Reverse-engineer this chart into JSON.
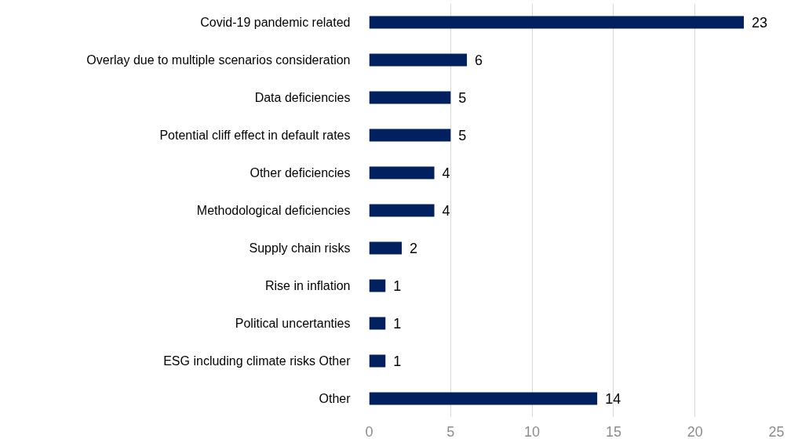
{
  "chart_data": {
    "type": "bar",
    "orientation": "horizontal",
    "categories": [
      "Covid-19 pandemic related",
      "Overlay due to multiple scenarios consideration",
      "Data deficiencies",
      "Potential cliff effect in default rates",
      "Other deficiencies",
      "Methodological deficiencies",
      "Supply chain risks",
      "Rise in inflation",
      "Political uncertanties",
      "ESG including climate risks Other",
      "Other"
    ],
    "values": [
      23,
      6,
      5,
      5,
      4,
      4,
      2,
      1,
      1,
      1,
      14
    ],
    "color": "#002060",
    "xlim": [
      0,
      25
    ],
    "xticks": [
      0,
      5,
      10,
      15,
      20,
      25
    ],
    "grid": "x",
    "data_labels": true
  }
}
